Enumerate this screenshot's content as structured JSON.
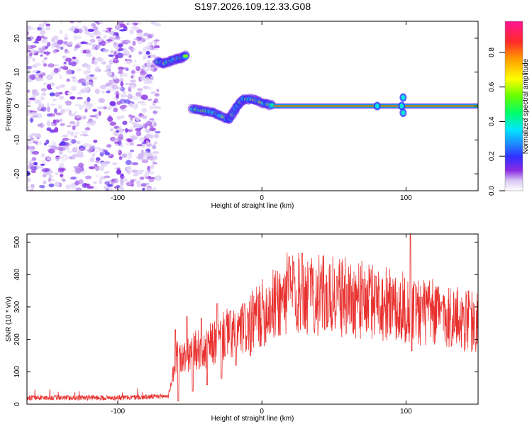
{
  "title": "S197.2026.109.12.33.G08",
  "colors": {
    "snr_line": "#e8312f",
    "axis": "#000000",
    "line_core": "#e81a3a"
  },
  "colorbar": {
    "label": "Normalized spectral amplitude",
    "ticks": [
      "0.0",
      "0.2",
      "0.4",
      "0.6",
      "0.8"
    ],
    "tick_values": [
      0.0,
      0.2,
      0.4,
      0.6,
      0.8
    ]
  },
  "chart_data": [
    {
      "type": "heatmap",
      "name": "spectrogram",
      "xlabel": "Height of straight line (km)",
      "ylabel": "Frequency (Hz)",
      "xlim": [
        -163,
        150
      ],
      "ylim": [
        -25,
        25
      ],
      "xticks": [
        -100,
        0,
        100
      ],
      "xtick_labels": [
        "-100",
        "0",
        "100"
      ],
      "yticks": [
        20,
        10,
        0,
        -10,
        -20
      ],
      "ytick_labels": [
        "20",
        "10",
        "0",
        "-10",
        "-20"
      ],
      "noise_region": [
        -163,
        -72
      ],
      "early_segment": [
        [
          -72,
          13
        ],
        [
          -68,
          12.5
        ],
        [
          -64,
          13.2
        ],
        [
          -60,
          13.8
        ],
        [
          -56,
          14.2
        ],
        [
          -52,
          15
        ]
      ],
      "main_track": [
        [
          -48,
          -1
        ],
        [
          -44,
          -1.2
        ],
        [
          -40,
          -1.5
        ],
        [
          -36,
          -1.8
        ],
        [
          -32,
          -2.2
        ],
        [
          -28,
          -3
        ],
        [
          -24,
          -3.8
        ],
        [
          -22,
          -3.5
        ],
        [
          -20,
          -2
        ],
        [
          -18,
          -0.8
        ],
        [
          -16,
          0.5
        ],
        [
          -14,
          1.5
        ],
        [
          -12,
          2
        ],
        [
          -8,
          2
        ],
        [
          -4,
          1.6
        ],
        [
          0,
          1
        ],
        [
          4,
          0.5
        ],
        [
          8,
          0.1
        ]
      ],
      "steady_line": {
        "x_start": 8,
        "x_end": 150,
        "freq": 0
      },
      "bright_spots": [
        [
          80,
          0
        ],
        [
          97,
          0
        ],
        [
          98,
          2.5
        ],
        [
          98,
          -2
        ]
      ]
    },
    {
      "type": "line",
      "name": "snr",
      "xlabel": "Height of straight line (km)",
      "ylabel": "SNR (10 * v/v)",
      "xlim": [
        -163,
        150
      ],
      "ylim": [
        0,
        525
      ],
      "xticks": [
        -100,
        0,
        100
      ],
      "xtick_labels": [
        "-100",
        "0",
        "100"
      ],
      "yticks": [
        0,
        100,
        200,
        300,
        400,
        500
      ],
      "ytick_labels": [
        "0",
        "100",
        "200",
        "300",
        "400",
        "500"
      ],
      "envelope": [
        [
          -163,
          20
        ],
        [
          -130,
          20
        ],
        [
          -100,
          20
        ],
        [
          -80,
          22
        ],
        [
          -65,
          25
        ],
        [
          -62,
          80
        ],
        [
          -60,
          150
        ],
        [
          -55,
          140
        ],
        [
          -50,
          150
        ],
        [
          -45,
          170
        ],
        [
          -40,
          160
        ],
        [
          -35,
          185
        ],
        [
          -30,
          190
        ],
        [
          -25,
          215
        ],
        [
          -20,
          215
        ],
        [
          -15,
          230
        ],
        [
          -10,
          240
        ],
        [
          -5,
          260
        ],
        [
          0,
          280
        ],
        [
          5,
          300
        ],
        [
          10,
          310
        ],
        [
          15,
          330
        ],
        [
          20,
          350
        ],
        [
          25,
          340
        ],
        [
          30,
          340
        ],
        [
          40,
          335
        ],
        [
          50,
          330
        ],
        [
          60,
          330
        ],
        [
          70,
          320
        ],
        [
          80,
          315
        ],
        [
          90,
          305
        ],
        [
          100,
          295
        ],
        [
          105,
          290
        ],
        [
          110,
          285
        ],
        [
          120,
          280
        ],
        [
          130,
          270
        ],
        [
          140,
          260
        ],
        [
          150,
          255
        ]
      ],
      "spikes": [
        [
          -60,
          230
        ],
        [
          -52,
          270
        ],
        [
          -42,
          265
        ],
        [
          -31,
          310
        ],
        [
          -22,
          285
        ],
        [
          -12,
          310
        ],
        [
          -3,
          330
        ],
        [
          10,
          340
        ],
        [
          19,
          455
        ],
        [
          22,
          440
        ],
        [
          28,
          465
        ],
        [
          33,
          420
        ],
        [
          44,
          370
        ],
        [
          52,
          395
        ],
        [
          59,
          370
        ],
        [
          70,
          385
        ],
        [
          79,
          395
        ],
        [
          90,
          360
        ],
        [
          103,
          525
        ],
        [
          106,
          370
        ],
        [
          111,
          330
        ],
        [
          125,
          315
        ],
        [
          140,
          300
        ],
        [
          145,
          295
        ]
      ],
      "dips": [
        [
          -58,
          10
        ],
        [
          -48,
          40
        ],
        [
          -38,
          60
        ],
        [
          -28,
          80
        ],
        [
          -18,
          120
        ],
        [
          -8,
          150
        ],
        [
          46,
          255
        ],
        [
          104,
          165
        ],
        [
          148,
          190
        ]
      ]
    }
  ]
}
